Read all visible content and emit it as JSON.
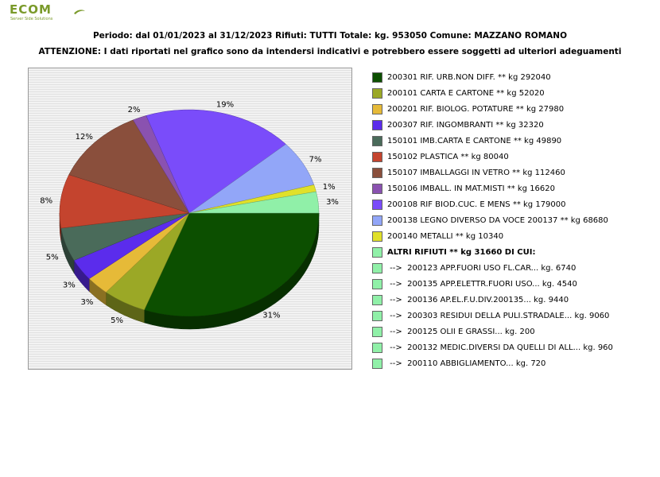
{
  "logo": {
    "text": "ECOM",
    "tagline": "Server Side Solutions"
  },
  "header": {
    "line1": "Periodo: dal 01/01/2023 al 31/12/2023 Rifiuti: TUTTI   Totale: kg. 953050    Comune: MAZZANO ROMANO",
    "line2": "ATTENZIONE: I dati riportati nel grafico sono da intendersi indicativi e potrebbero essere soggetti ad ulteriori adeguamenti"
  },
  "chart_data": {
    "type": "pie",
    "title": "",
    "slices": [
      {
        "label": "200301 RIF. URB.NON DIFF. ** kg 292040",
        "value": 292040,
        "pct_label": "31%",
        "color": "#0c4f00"
      },
      {
        "label": "200101 CARTA E CARTONE ** kg 52020",
        "value": 52020,
        "pct_label": "5%",
        "color": "#9ba826"
      },
      {
        "label": "200201 RIF. BIOLOG. POTATURE ** kg 27980",
        "value": 27980,
        "pct_label": "3%",
        "color": "#e6ba38"
      },
      {
        "label": "200307 RIF. INGOMBRANTI ** kg 32320",
        "value": 32320,
        "pct_label": "3%",
        "color": "#5b2cec"
      },
      {
        "label": "150101 IMB.CARTA E CARTONE ** kg 49890",
        "value": 49890,
        "pct_label": "5%",
        "color": "#4a6b5a"
      },
      {
        "label": "150102 PLASTICA ** kg 80040",
        "value": 80040,
        "pct_label": "8%",
        "color": "#c4442e"
      },
      {
        "label": "150107 IMBALLAGGI IN VETRO ** kg 112460",
        "value": 112460,
        "pct_label": "12%",
        "color": "#8a4f3c"
      },
      {
        "label": "150106 IMBALL. IN MAT.MISTI ** kg 16620",
        "value": 16620,
        "pct_label": "2%",
        "color": "#8a52b0"
      },
      {
        "label": "200108 RIF BIOD.CUC. E MENS ** kg 179000",
        "value": 179000,
        "pct_label": "19%",
        "color": "#7a4cfa"
      },
      {
        "label": "200138 LEGNO DIVERSO DA VOCE 200137 ** kg 68680",
        "value": 68680,
        "pct_label": "7%",
        "color": "#92a6f8"
      },
      {
        "label": "200140 METALLI ** kg 10340",
        "value": 10340,
        "pct_label": "1%",
        "color": "#e0e02a"
      },
      {
        "label": "ALTRI RIFIUTI ** kg 31660 DI CUI:",
        "value": 31660,
        "pct_label": "3%",
        "color": "#90f0a8"
      }
    ],
    "sub_items": [
      {
        "label": " -->  200123 APP.FUORI USO FL.CAR... kg. 6740",
        "color": "#90f0a8"
      },
      {
        "label": " -->  200135 APP.ELETTR.FUORI USO... kg. 4540",
        "color": "#90f0a8"
      },
      {
        "label": " -->  200136 AP.EL.F.U.DIV.200135... kg. 9440",
        "color": "#90f0a8"
      },
      {
        "label": " -->  200303 RESIDUI DELLA PULI.STRADALE... kg. 9060",
        "color": "#90f0a8"
      },
      {
        "label": " -->  200125 OLII E GRASSI... kg. 200",
        "color": "#90f0a8"
      },
      {
        "label": " -->  200132 MEDIC.DIVERSI DA QUELLI DI ALL... kg. 960",
        "color": "#90f0a8"
      },
      {
        "label": " -->  200110 ABBIGLIAMENTO... kg. 720",
        "color": "#90f0a8"
      }
    ],
    "legend_position": "right"
  }
}
